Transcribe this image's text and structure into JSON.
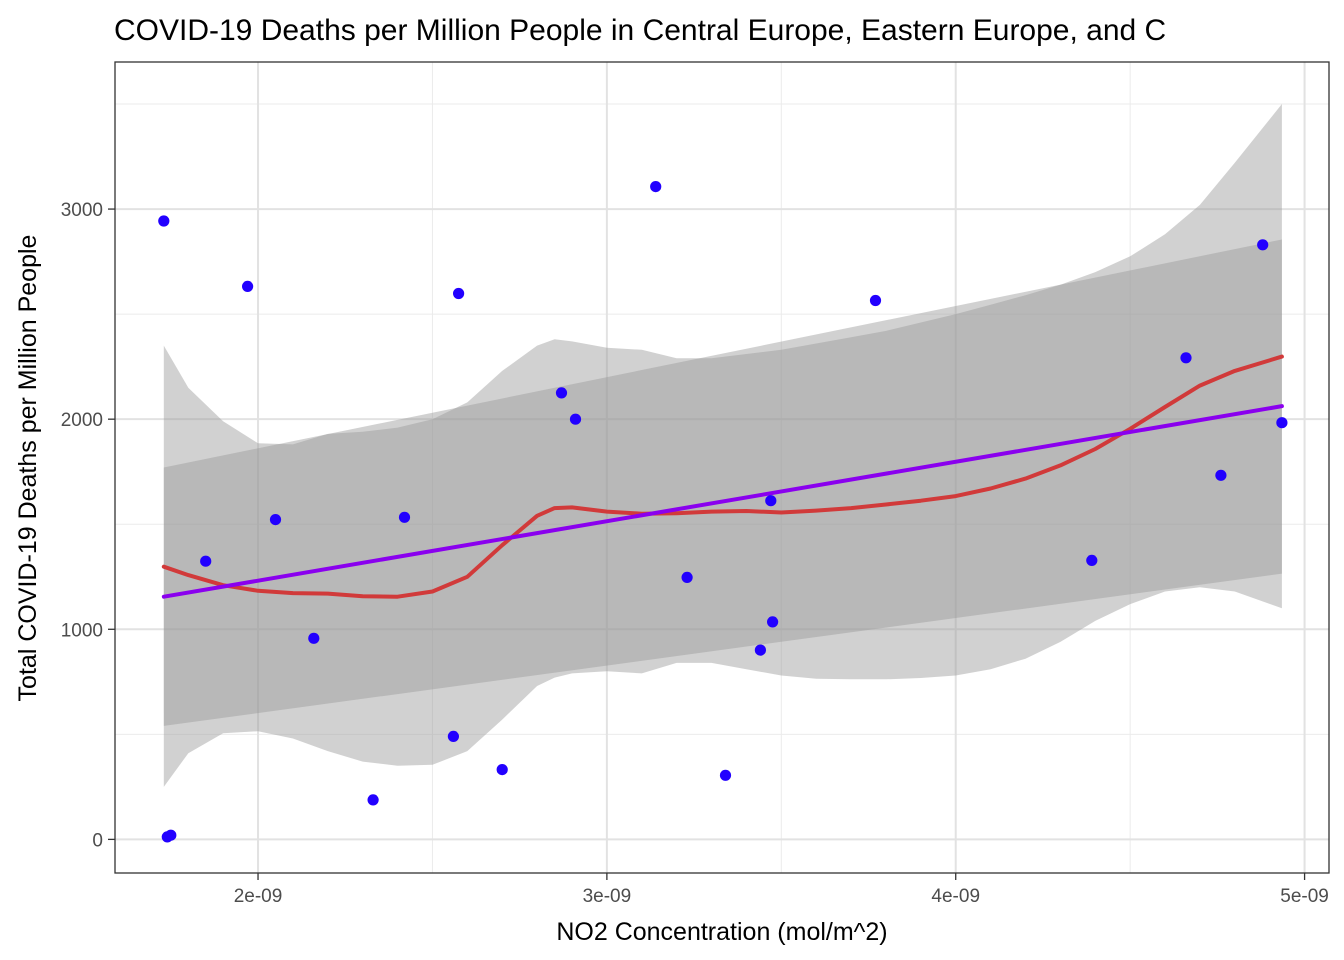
{
  "chart_data": {
    "type": "scatter",
    "title": "COVID-19 Deaths per Million People in Central Europe, Eastern Europe, and C",
    "xlabel": "NO2 Concentration (mol/m^2)",
    "ylabel": "Total COVID-19 Deaths per Million People",
    "xlim": [
      1.59e-09,
      5.07e-09
    ],
    "ylim": [
      -160,
      3700
    ],
    "x_ticks": [
      {
        "value": 2e-09,
        "label": "2e-09"
      },
      {
        "value": 3e-09,
        "label": "3e-09"
      },
      {
        "value": 4e-09,
        "label": "4e-09"
      },
      {
        "value": 5e-09,
        "label": "5e-09"
      }
    ],
    "x_minor_ticks": [
      1.5e-09,
      2.5e-09,
      3.5e-09,
      4.5e-09
    ],
    "y_ticks": [
      {
        "value": 0,
        "label": "0"
      },
      {
        "value": 1000,
        "label": "1000"
      },
      {
        "value": 2000,
        "label": "2000"
      },
      {
        "value": 3000,
        "label": "3000"
      }
    ],
    "y_minor_ticks": [
      500,
      1500,
      2500,
      3500
    ],
    "grid": true,
    "point_color": "#2200ff",
    "series": [
      {
        "name": "countries",
        "points": [
          {
            "x": 1.73e-09,
            "y": 2943
          },
          {
            "x": 1.74e-09,
            "y": 12
          },
          {
            "x": 1.75e-09,
            "y": 20
          },
          {
            "x": 1.85e-09,
            "y": 1324
          },
          {
            "x": 1.97e-09,
            "y": 2632
          },
          {
            "x": 2.05e-09,
            "y": 1522
          },
          {
            "x": 2.16e-09,
            "y": 957
          },
          {
            "x": 2.33e-09,
            "y": 188
          },
          {
            "x": 2.42e-09,
            "y": 1533
          },
          {
            "x": 2.56e-09,
            "y": 490
          },
          {
            "x": 2.575e-09,
            "y": 2598
          },
          {
            "x": 2.7e-09,
            "y": 332
          },
          {
            "x": 2.87e-09,
            "y": 2125
          },
          {
            "x": 2.91e-09,
            "y": 2000
          },
          {
            "x": 3.14e-09,
            "y": 3107
          },
          {
            "x": 3.23e-09,
            "y": 1247
          },
          {
            "x": 3.34e-09,
            "y": 305
          },
          {
            "x": 3.44e-09,
            "y": 901
          },
          {
            "x": 3.47e-09,
            "y": 1612
          },
          {
            "x": 3.475e-09,
            "y": 1035
          },
          {
            "x": 3.77e-09,
            "y": 2565
          },
          {
            "x": 4.39e-09,
            "y": 1328
          },
          {
            "x": 4.66e-09,
            "y": 2292
          },
          {
            "x": 4.76e-09,
            "y": 1733
          },
          {
            "x": 4.88e-09,
            "y": 2830
          },
          {
            "x": 4.935e-09,
            "y": 1983
          }
        ]
      }
    ],
    "loess_fit": {
      "color": "#d13a3a",
      "points": [
        {
          "x": 1.73e-09,
          "y": 1298
        },
        {
          "x": 1.8e-09,
          "y": 1258
        },
        {
          "x": 1.9e-09,
          "y": 1210
        },
        {
          "x": 2e-09,
          "y": 1183
        },
        {
          "x": 2.1e-09,
          "y": 1172
        },
        {
          "x": 2.2e-09,
          "y": 1170
        },
        {
          "x": 2.3e-09,
          "y": 1157
        },
        {
          "x": 2.4e-09,
          "y": 1155
        },
        {
          "x": 2.5e-09,
          "y": 1180
        },
        {
          "x": 2.6e-09,
          "y": 1250
        },
        {
          "x": 2.7e-09,
          "y": 1400
        },
        {
          "x": 2.8e-09,
          "y": 1540
        },
        {
          "x": 2.85e-09,
          "y": 1577
        },
        {
          "x": 2.9e-09,
          "y": 1580
        },
        {
          "x": 3e-09,
          "y": 1560
        },
        {
          "x": 3.1e-09,
          "y": 1550
        },
        {
          "x": 3.2e-09,
          "y": 1552
        },
        {
          "x": 3.3e-09,
          "y": 1560
        },
        {
          "x": 3.4e-09,
          "y": 1563
        },
        {
          "x": 3.5e-09,
          "y": 1556
        },
        {
          "x": 3.6e-09,
          "y": 1565
        },
        {
          "x": 3.7e-09,
          "y": 1577
        },
        {
          "x": 3.8e-09,
          "y": 1594
        },
        {
          "x": 3.9e-09,
          "y": 1612
        },
        {
          "x": 4e-09,
          "y": 1634
        },
        {
          "x": 4.1e-09,
          "y": 1670
        },
        {
          "x": 4.2e-09,
          "y": 1717
        },
        {
          "x": 4.3e-09,
          "y": 1780
        },
        {
          "x": 4.4e-09,
          "y": 1858
        },
        {
          "x": 4.5e-09,
          "y": 1954
        },
        {
          "x": 4.6e-09,
          "y": 2058
        },
        {
          "x": 4.7e-09,
          "y": 2160
        },
        {
          "x": 4.8e-09,
          "y": 2230
        },
        {
          "x": 4.935e-09,
          "y": 2298
        }
      ],
      "ci_upper": [
        {
          "x": 1.73e-09,
          "y": 2350
        },
        {
          "x": 1.8e-09,
          "y": 2150
        },
        {
          "x": 1.9e-09,
          "y": 1990
        },
        {
          "x": 2e-09,
          "y": 1885
        },
        {
          "x": 2.1e-09,
          "y": 1880
        },
        {
          "x": 2.2e-09,
          "y": 1930
        },
        {
          "x": 2.3e-09,
          "y": 1940
        },
        {
          "x": 2.4e-09,
          "y": 1960
        },
        {
          "x": 2.5e-09,
          "y": 2000
        },
        {
          "x": 2.6e-09,
          "y": 2080
        },
        {
          "x": 2.7e-09,
          "y": 2230
        },
        {
          "x": 2.8e-09,
          "y": 2350
        },
        {
          "x": 2.85e-09,
          "y": 2380
        },
        {
          "x": 2.9e-09,
          "y": 2370
        },
        {
          "x": 3e-09,
          "y": 2340
        },
        {
          "x": 3.1e-09,
          "y": 2330
        },
        {
          "x": 3.2e-09,
          "y": 2290
        },
        {
          "x": 3.3e-09,
          "y": 2290
        },
        {
          "x": 3.4e-09,
          "y": 2310
        },
        {
          "x": 3.5e-09,
          "y": 2330
        },
        {
          "x": 3.6e-09,
          "y": 2360
        },
        {
          "x": 3.7e-09,
          "y": 2390
        },
        {
          "x": 3.8e-09,
          "y": 2420
        },
        {
          "x": 3.9e-09,
          "y": 2460
        },
        {
          "x": 4e-09,
          "y": 2500
        },
        {
          "x": 4.1e-09,
          "y": 2545
        },
        {
          "x": 4.2e-09,
          "y": 2590
        },
        {
          "x": 4.3e-09,
          "y": 2640
        },
        {
          "x": 4.4e-09,
          "y": 2700
        },
        {
          "x": 4.5e-09,
          "y": 2775
        },
        {
          "x": 4.6e-09,
          "y": 2880
        },
        {
          "x": 4.7e-09,
          "y": 3020
        },
        {
          "x": 4.8e-09,
          "y": 3220
        },
        {
          "x": 4.935e-09,
          "y": 3500
        }
      ],
      "ci_lower": [
        {
          "x": 1.73e-09,
          "y": 250
        },
        {
          "x": 1.8e-09,
          "y": 410
        },
        {
          "x": 1.9e-09,
          "y": 505
        },
        {
          "x": 2e-09,
          "y": 515
        },
        {
          "x": 2.1e-09,
          "y": 480
        },
        {
          "x": 2.2e-09,
          "y": 420
        },
        {
          "x": 2.3e-09,
          "y": 370
        },
        {
          "x": 2.4e-09,
          "y": 350
        },
        {
          "x": 2.5e-09,
          "y": 355
        },
        {
          "x": 2.6e-09,
          "y": 420
        },
        {
          "x": 2.7e-09,
          "y": 570
        },
        {
          "x": 2.8e-09,
          "y": 730
        },
        {
          "x": 2.85e-09,
          "y": 770
        },
        {
          "x": 2.9e-09,
          "y": 790
        },
        {
          "x": 3e-09,
          "y": 800
        },
        {
          "x": 3.1e-09,
          "y": 790
        },
        {
          "x": 3.2e-09,
          "y": 840
        },
        {
          "x": 3.3e-09,
          "y": 840
        },
        {
          "x": 3.4e-09,
          "y": 810
        },
        {
          "x": 3.5e-09,
          "y": 780
        },
        {
          "x": 3.6e-09,
          "y": 765
        },
        {
          "x": 3.7e-09,
          "y": 762
        },
        {
          "x": 3.8e-09,
          "y": 762
        },
        {
          "x": 3.9e-09,
          "y": 768
        },
        {
          "x": 4e-09,
          "y": 780
        },
        {
          "x": 4.1e-09,
          "y": 810
        },
        {
          "x": 4.2e-09,
          "y": 860
        },
        {
          "x": 4.3e-09,
          "y": 940
        },
        {
          "x": 4.4e-09,
          "y": 1040
        },
        {
          "x": 4.5e-09,
          "y": 1120
        },
        {
          "x": 4.6e-09,
          "y": 1180
        },
        {
          "x": 4.7e-09,
          "y": 1200
        },
        {
          "x": 4.8e-09,
          "y": 1180
        },
        {
          "x": 4.935e-09,
          "y": 1100
        }
      ]
    },
    "linear_fit": {
      "color": "#8a00ee",
      "x_range": [
        1.73e-09,
        4.935e-09
      ],
      "y_range": [
        1155,
        2062
      ],
      "ci_at_start": [
        540,
        1770
      ],
      "ci_at_end": [
        1265,
        2855
      ]
    }
  }
}
